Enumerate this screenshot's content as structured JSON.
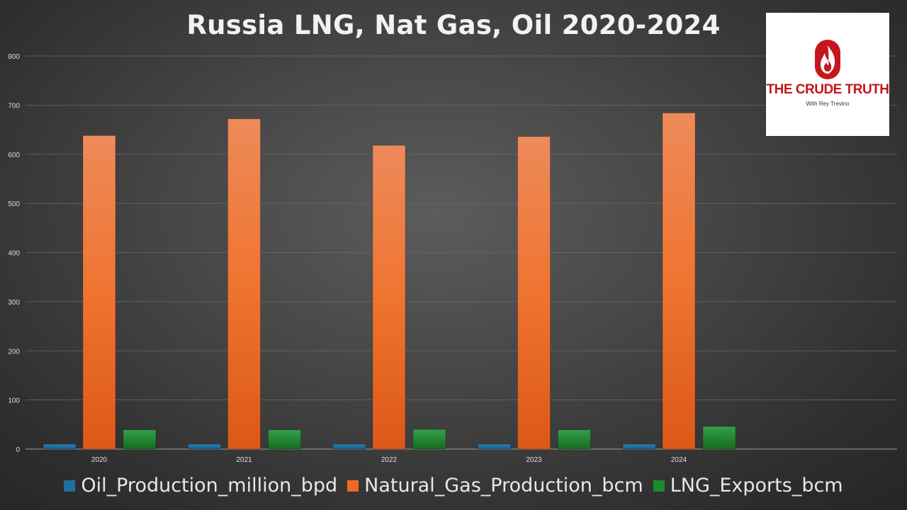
{
  "chart_data": {
    "type": "bar",
    "title": "Russia LNG, Nat Gas, Oil 2020-2024",
    "categories": [
      "2020",
      "2021",
      "2022",
      "2023",
      "2024"
    ],
    "series": [
      {
        "name": "Oil_Production_million_bpd",
        "values": [
          10,
          10,
          10,
          10,
          10
        ],
        "color": "#1f6fa0"
      },
      {
        "name": "Natural_Gas_Production_bcm",
        "values": [
          638,
          672,
          618,
          636,
          684
        ],
        "color": "#ee6a22"
      },
      {
        "name": "LNG_Exports_bcm",
        "values": [
          39,
          39,
          40,
          39,
          46
        ],
        "color": "#1e8a2e"
      }
    ],
    "ylim": [
      0,
      800
    ],
    "yticks": [
      0,
      100,
      200,
      300,
      400,
      500,
      600,
      700,
      800
    ],
    "grid": true,
    "legend_position": "bottom",
    "xlabel": "",
    "ylabel": ""
  },
  "logo": {
    "name": "THE CRUDE TRUTH",
    "subtitle": "With Rey Trevino",
    "icon": "flame-icon",
    "color": "#c4161c"
  }
}
